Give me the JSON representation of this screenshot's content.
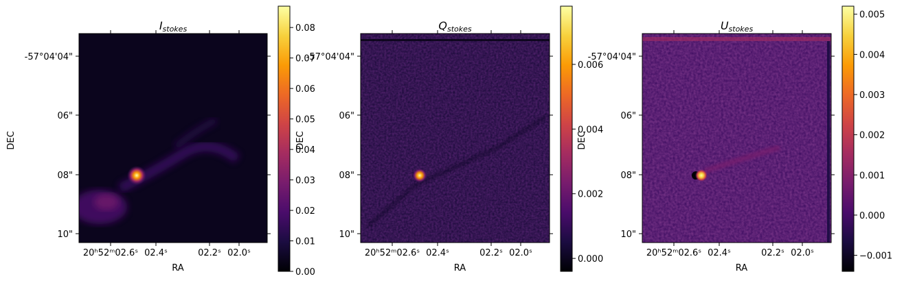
{
  "chart_data": [
    {
      "type": "heatmap",
      "title": "I",
      "title_sub": "stokes",
      "xlabel": "RA",
      "ylabel": "DEC",
      "x_ticks": [
        "20ʰ52ᵐ02.6ˢ",
        "02.4ˢ",
        "02.2ˢ",
        "02.0ˢ"
      ],
      "y_ticks": [
        "-57°04'04\"",
        "06\"",
        "08\"",
        "10\""
      ],
      "colormap": "inferno",
      "colorbar": {
        "ticks": [
          0.0,
          0.01,
          0.02,
          0.03,
          0.04,
          0.05,
          0.06,
          0.07,
          0.08
        ],
        "labels": [
          "0.00",
          "0.01",
          "0.02",
          "0.03",
          "0.04",
          "0.05",
          "0.06",
          "0.07",
          "0.08"
        ],
        "range": [
          0.0,
          0.087
        ]
      },
      "features": {
        "peak_value": 0.087,
        "background": 0.002,
        "extended_emission": "diffuse filament from lower-left toward right"
      }
    },
    {
      "type": "heatmap",
      "title": "Q",
      "title_sub": "stokes",
      "xlabel": "RA",
      "ylabel": "DEC",
      "x_ticks": [
        "20ʰ52ᵐ02.6ˢ",
        "02.4ˢ",
        "02.2ˢ",
        "02.0ˢ"
      ],
      "y_ticks": [
        "-57°04'04\"",
        "06\"",
        "08\"",
        "10\""
      ],
      "colormap": "inferno",
      "colorbar": {
        "ticks": [
          0.0,
          0.002,
          0.004,
          0.006
        ],
        "labels": [
          "0.000",
          "0.002",
          "0.004",
          "0.006"
        ],
        "range": [
          -0.0004,
          0.0078
        ]
      },
      "features": {
        "peak_value": 0.0078,
        "background": 0.0001
      }
    },
    {
      "type": "heatmap",
      "title": "U",
      "title_sub": "stokes",
      "xlabel": "RA",
      "ylabel": "DEC",
      "x_ticks": [
        "20ʰ52ᵐ02.6ˢ",
        "02.4ˢ",
        "02.2ˢ",
        "02.0ˢ"
      ],
      "y_ticks": [
        "-57°04'04\"",
        "06\"",
        "08\"",
        "10\""
      ],
      "colormap": "inferno",
      "colorbar": {
        "ticks": [
          -0.001,
          0.0,
          0.001,
          0.002,
          0.003,
          0.004,
          0.005
        ],
        "labels": [
          "−0.001",
          "0.000",
          "0.001",
          "0.002",
          "0.003",
          "0.004",
          "0.005"
        ],
        "range": [
          -0.0014,
          0.0052
        ]
      },
      "features": {
        "peak_value": 0.0052,
        "min_value": -0.0014,
        "background": 0.0002
      }
    }
  ],
  "colors": {
    "inferno_stops": [
      "#000004",
      "#1b0c41",
      "#4a0c6b",
      "#781c6d",
      "#a52c60",
      "#cf4446",
      "#ed6925",
      "#fb9b06",
      "#f7d13d",
      "#fcffa4"
    ]
  }
}
